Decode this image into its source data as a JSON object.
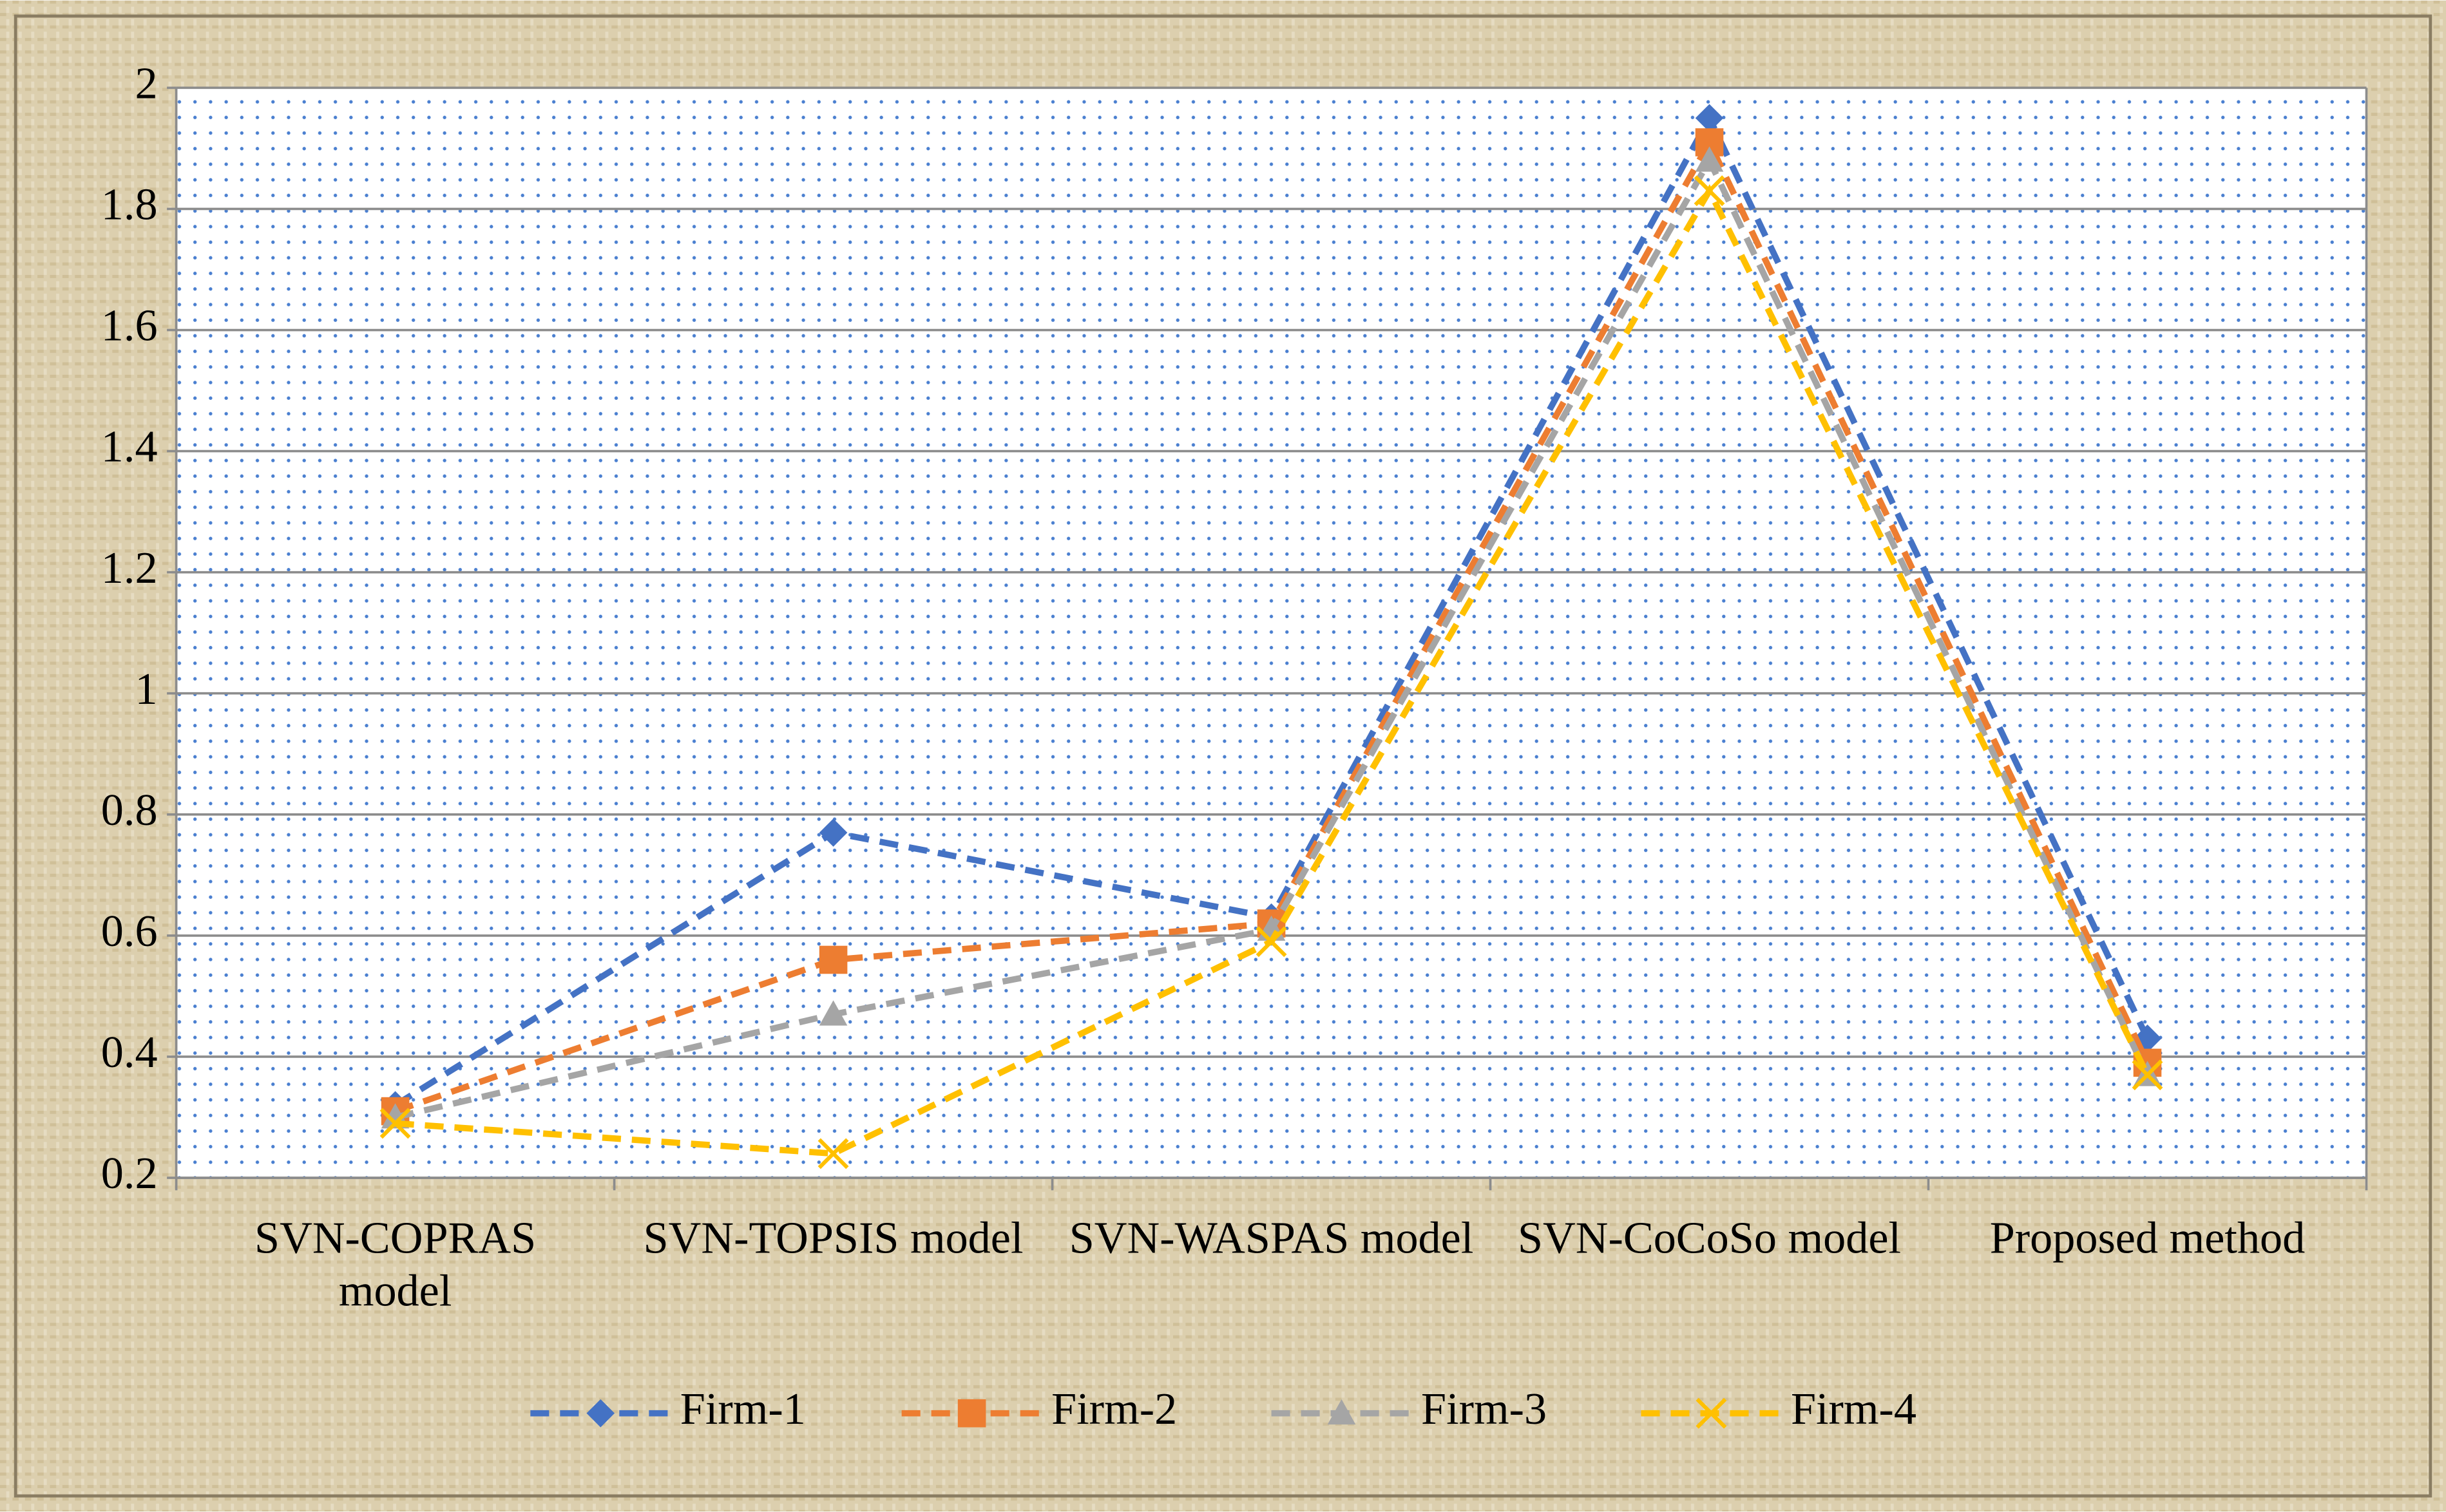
{
  "chart_data": {
    "type": "line",
    "categories": [
      "SVN-COPRAS model",
      "SVN-TOPSIS model",
      "SVN-WASPAS model",
      "SVN-CoCoSo model",
      "Proposed method"
    ],
    "series": [
      {
        "name": "Firm-1",
        "color": "#4472c4",
        "marker": "diamond",
        "values": [
          0.32,
          0.77,
          0.63,
          1.95,
          0.43
        ]
      },
      {
        "name": "Firm-2",
        "color": "#ed7d31",
        "marker": "square",
        "values": [
          0.31,
          0.56,
          0.62,
          1.91,
          0.39
        ]
      },
      {
        "name": "Firm-3",
        "color": "#a5a5a5",
        "marker": "triangle",
        "values": [
          0.3,
          0.47,
          0.61,
          1.88,
          0.37
        ]
      },
      {
        "name": "Firm-4",
        "color": "#ffc000",
        "marker": "x",
        "values": [
          0.29,
          0.24,
          0.59,
          1.83,
          0.37
        ]
      }
    ],
    "ylim": [
      0.2,
      2
    ],
    "yticks": [
      0.2,
      0.4,
      0.6,
      0.8,
      1,
      1.2,
      1.4,
      1.6,
      1.8,
      2
    ],
    "grid": true,
    "legend": "bottom"
  }
}
